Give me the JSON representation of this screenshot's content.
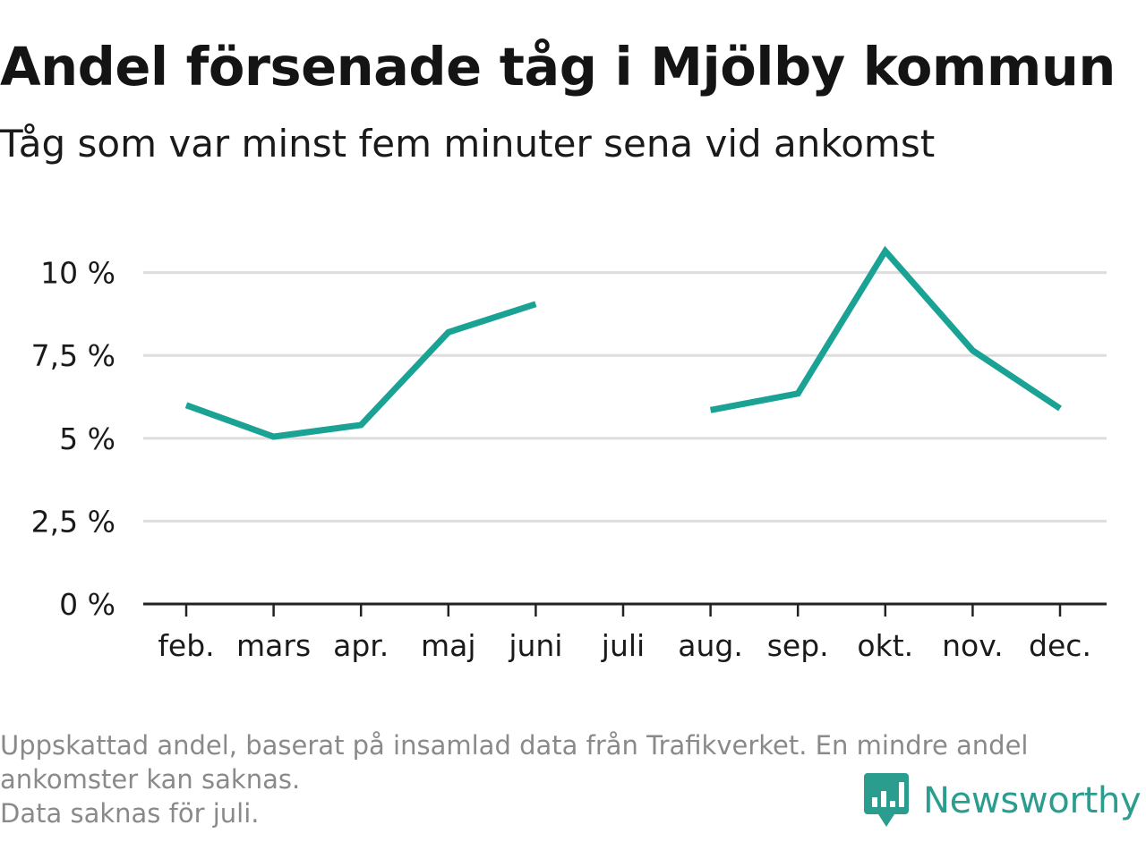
{
  "header": {
    "title": "Andel försenade tåg i Mjölby kommun",
    "subtitle": "Tåg som var minst fem minuter sena vid ankomst"
  },
  "chart_data": {
    "type": "line",
    "title": "Andel försenade tåg i Mjölby kommun",
    "subtitle": "Tåg som var minst fem minuter sena vid ankomst",
    "categories": [
      "feb.",
      "mars",
      "apr.",
      "maj",
      "juni",
      "juli",
      "aug.",
      "sep.",
      "okt.",
      "nov.",
      "dec."
    ],
    "series": [
      {
        "values": [
          6.0,
          5.05,
          5.4,
          8.2,
          9.05,
          null,
          5.85,
          6.35,
          10.65,
          7.65,
          5.9
        ],
        "color": "#1aa394"
      }
    ],
    "y_ticks": [
      0,
      2.5,
      5,
      7.5,
      10
    ],
    "y_tick_labels": [
      "0 %",
      "2,5 %",
      "5 %",
      "7,5 %",
      "10 %"
    ],
    "ylim": [
      0,
      10.8
    ],
    "xlabel": "",
    "ylabel": "",
    "grid": true,
    "legend": "none"
  },
  "footer": {
    "note_lines": [
      "Uppskattad andel, baserat på insamlad data från Trafikverket. En mindre andel",
      "ankomster kan saknas.",
      "Data saknas för juli."
    ],
    "brand": "Newsworthy",
    "brand_color": "#2a9d8f"
  },
  "colors": {
    "line": "#1aa394",
    "grid": "#dddddd",
    "axis": "#222222",
    "text": "#1a1a1a",
    "note": "#8a8a8a"
  }
}
